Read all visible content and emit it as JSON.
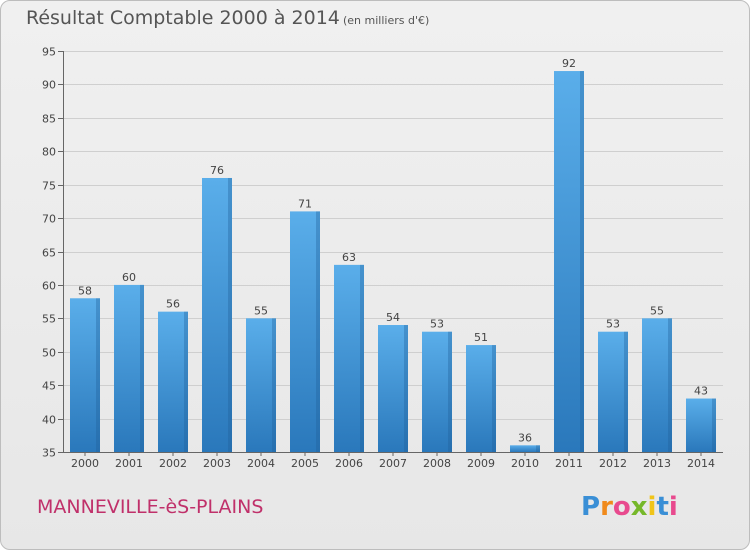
{
  "title": "Résultat Comptable 2000 à 2014",
  "unit_note": "(en milliers d'€)",
  "commune": "MANNEVILLE-èS-PLAINS",
  "logo_text": "Proxiti",
  "colors": {
    "bar_top": "#5aaeea",
    "bar_bottom": "#2a78bb",
    "grid": "#cfcfcf",
    "title": "#555555",
    "commune": "#c0306a"
  },
  "chart_data": {
    "type": "bar",
    "title": "Résultat Comptable 2000 à 2014",
    "xlabel": "",
    "ylabel": "",
    "categories": [
      "2000",
      "2001",
      "2002",
      "2003",
      "2004",
      "2005",
      "2006",
      "2007",
      "2008",
      "2009",
      "2010",
      "2011",
      "2012",
      "2013",
      "2014"
    ],
    "values": [
      58,
      60,
      56,
      76,
      55,
      71,
      63,
      54,
      53,
      51,
      36,
      92,
      53,
      55,
      43
    ],
    "ylim": [
      35,
      95
    ],
    "yticks": [
      35,
      40,
      45,
      50,
      55,
      60,
      65,
      70,
      75,
      80,
      85,
      90,
      95
    ],
    "grid": true,
    "legend": "none"
  }
}
